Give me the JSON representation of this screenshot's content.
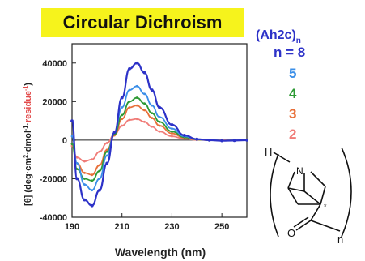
{
  "chart_data": {
    "type": "line",
    "title": "Circular Dichroism",
    "xlabel": "Wavelength (nm)",
    "ylabel": "[θ] (deg·cm²·dmol⁻¹·residue⁻¹)",
    "ylabel_parts": {
      "left": "[θ] (deg·cm",
      "sup1": "2",
      "mid": "·dmol",
      "sup2": "-1",
      "dot": "·",
      "residue": "residue",
      "sup3": "-1",
      "close": ")"
    },
    "xlim": [
      190,
      260
    ],
    "ylim": [
      -40000,
      50000
    ],
    "x_ticks": [
      190,
      210,
      230,
      250
    ],
    "y_ticks": [
      40000,
      20000,
      0,
      -20000,
      -40000
    ],
    "y_tick_labels": [
      "40000",
      "20000",
      "0",
      "-20000",
      "-40000"
    ],
    "legend_title": "(Ah2c)",
    "legend_title_sub": "n",
    "legend_placement": "right",
    "x": [
      190,
      192,
      195,
      198,
      201,
      204,
      207,
      210,
      213,
      216,
      219,
      222,
      225,
      230,
      235,
      240,
      245,
      250,
      255,
      260
    ],
    "series": [
      {
        "name": "n = 8",
        "color": "#2d32c8",
        "values": [
          10000,
          -20000,
          -31000,
          -34000,
          -26000,
          -12000,
          4000,
          22000,
          37000,
          40000,
          35000,
          26000,
          17000,
          8000,
          2500,
          500,
          0,
          -300,
          -200,
          0
        ]
      },
      {
        "name": "5",
        "color": "#3b8fe8",
        "values": [
          2000,
          -12000,
          -23000,
          -26000,
          -20000,
          -8000,
          4000,
          17000,
          26000,
          28000,
          24000,
          18000,
          12000,
          6000,
          2000,
          400,
          0,
          -200,
          -100,
          0
        ]
      },
      {
        "name": "4",
        "color": "#2e9a35",
        "values": [
          -2000,
          -15000,
          -20000,
          -21000,
          -16000,
          -6000,
          3000,
          13000,
          20000,
          22000,
          19000,
          14000,
          9500,
          4500,
          1500,
          300,
          0,
          -200,
          -100,
          0
        ]
      },
      {
        "name": "3",
        "color": "#e8703a",
        "values": [
          -2000,
          -12000,
          -17000,
          -18000,
          -13000,
          -5000,
          2500,
          11000,
          17000,
          18000,
          15500,
          11500,
          7500,
          3500,
          1200,
          200,
          0,
          -150,
          -100,
          0
        ]
      },
      {
        "name": "2",
        "color": "#f07c78",
        "values": [
          -3000,
          -9000,
          -11000,
          -10000,
          -6000,
          -1500,
          3000,
          7500,
          10500,
          11000,
          9500,
          7000,
          4500,
          2000,
          700,
          100,
          0,
          -100,
          0,
          0
        ]
      }
    ]
  },
  "structure": {
    "h_label": "H",
    "n_label": "N",
    "o_label": "O",
    "star_label": "*",
    "sub_n_label": "n"
  }
}
